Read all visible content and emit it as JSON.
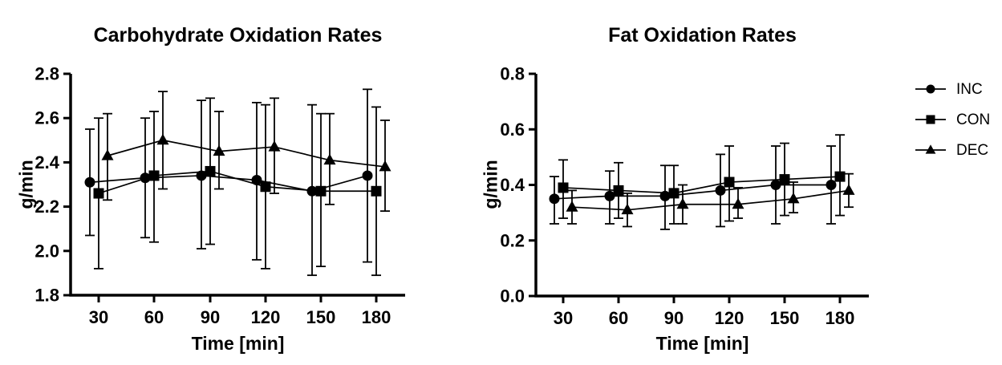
{
  "figure": {
    "background_color": "#ffffff",
    "series_color": "#000000"
  },
  "legend": {
    "position": "outside-top-right",
    "items": [
      {
        "label": "INC",
        "marker": "circle"
      },
      {
        "label": "CON",
        "marker": "square"
      },
      {
        "label": "DEC",
        "marker": "triangle"
      }
    ]
  },
  "chart_data": [
    {
      "type": "line",
      "title": "Carbohydrate Oxidation Rates",
      "xlabel": "Time [min]",
      "ylabel": "g/min",
      "grid": false,
      "error_bars": true,
      "color": "#000000",
      "x": [
        30,
        60,
        90,
        120,
        150,
        180
      ],
      "xtick_labels": [
        "30",
        "60",
        "90",
        "120",
        "150",
        "180"
      ],
      "ylim": [
        1.8,
        2.8
      ],
      "ytick_labels": [
        "1.8",
        "2.0",
        "2.2",
        "2.4",
        "2.6",
        "2.8"
      ],
      "series": [
        {
          "name": "INC",
          "marker": "circle",
          "values": [
            2.31,
            2.33,
            2.34,
            2.32,
            2.27,
            2.34
          ],
          "err_low": [
            2.07,
            2.06,
            2.01,
            1.96,
            1.89,
            1.95
          ],
          "err_high": [
            2.55,
            2.6,
            2.68,
            2.67,
            2.66,
            2.73
          ]
        },
        {
          "name": "CON",
          "marker": "square",
          "values": [
            2.26,
            2.34,
            2.36,
            2.29,
            2.27,
            2.27
          ],
          "err_low": [
            1.92,
            2.04,
            2.03,
            1.92,
            1.93,
            1.89
          ],
          "err_high": [
            2.6,
            2.63,
            2.69,
            2.66,
            2.62,
            2.65
          ]
        },
        {
          "name": "DEC",
          "marker": "triangle",
          "values": [
            2.43,
            2.5,
            2.45,
            2.47,
            2.41,
            2.38
          ],
          "err_low": [
            2.23,
            2.28,
            2.28,
            2.26,
            2.21,
            2.18
          ],
          "err_high": [
            2.62,
            2.72,
            2.63,
            2.69,
            2.62,
            2.59
          ]
        }
      ]
    },
    {
      "type": "line",
      "title": "Fat Oxidation Rates",
      "xlabel": "Time [min]",
      "ylabel": "g/min",
      "grid": false,
      "error_bars": true,
      "color": "#000000",
      "x": [
        30,
        60,
        90,
        120,
        150,
        180
      ],
      "xtick_labels": [
        "30",
        "60",
        "90",
        "120",
        "150",
        "180"
      ],
      "ylim": [
        0.0,
        0.8
      ],
      "ytick_labels": [
        "0.0",
        "0.2",
        "0.4",
        "0.6",
        "0.8"
      ],
      "series": [
        {
          "name": "INC",
          "marker": "circle",
          "values": [
            0.35,
            0.36,
            0.36,
            0.38,
            0.4,
            0.4
          ],
          "err_low": [
            0.26,
            0.26,
            0.24,
            0.25,
            0.26,
            0.26
          ],
          "err_high": [
            0.43,
            0.45,
            0.47,
            0.51,
            0.54,
            0.54
          ]
        },
        {
          "name": "CON",
          "marker": "square",
          "values": [
            0.39,
            0.38,
            0.37,
            0.41,
            0.42,
            0.43
          ],
          "err_low": [
            0.28,
            0.28,
            0.26,
            0.27,
            0.29,
            0.29
          ],
          "err_high": [
            0.49,
            0.48,
            0.47,
            0.54,
            0.55,
            0.58
          ]
        },
        {
          "name": "DEC",
          "marker": "triangle",
          "values": [
            0.32,
            0.31,
            0.33,
            0.33,
            0.35,
            0.38
          ],
          "err_low": [
            0.26,
            0.25,
            0.26,
            0.28,
            0.3,
            0.32
          ],
          "err_high": [
            0.38,
            0.37,
            0.4,
            0.39,
            0.41,
            0.44
          ]
        }
      ]
    }
  ]
}
